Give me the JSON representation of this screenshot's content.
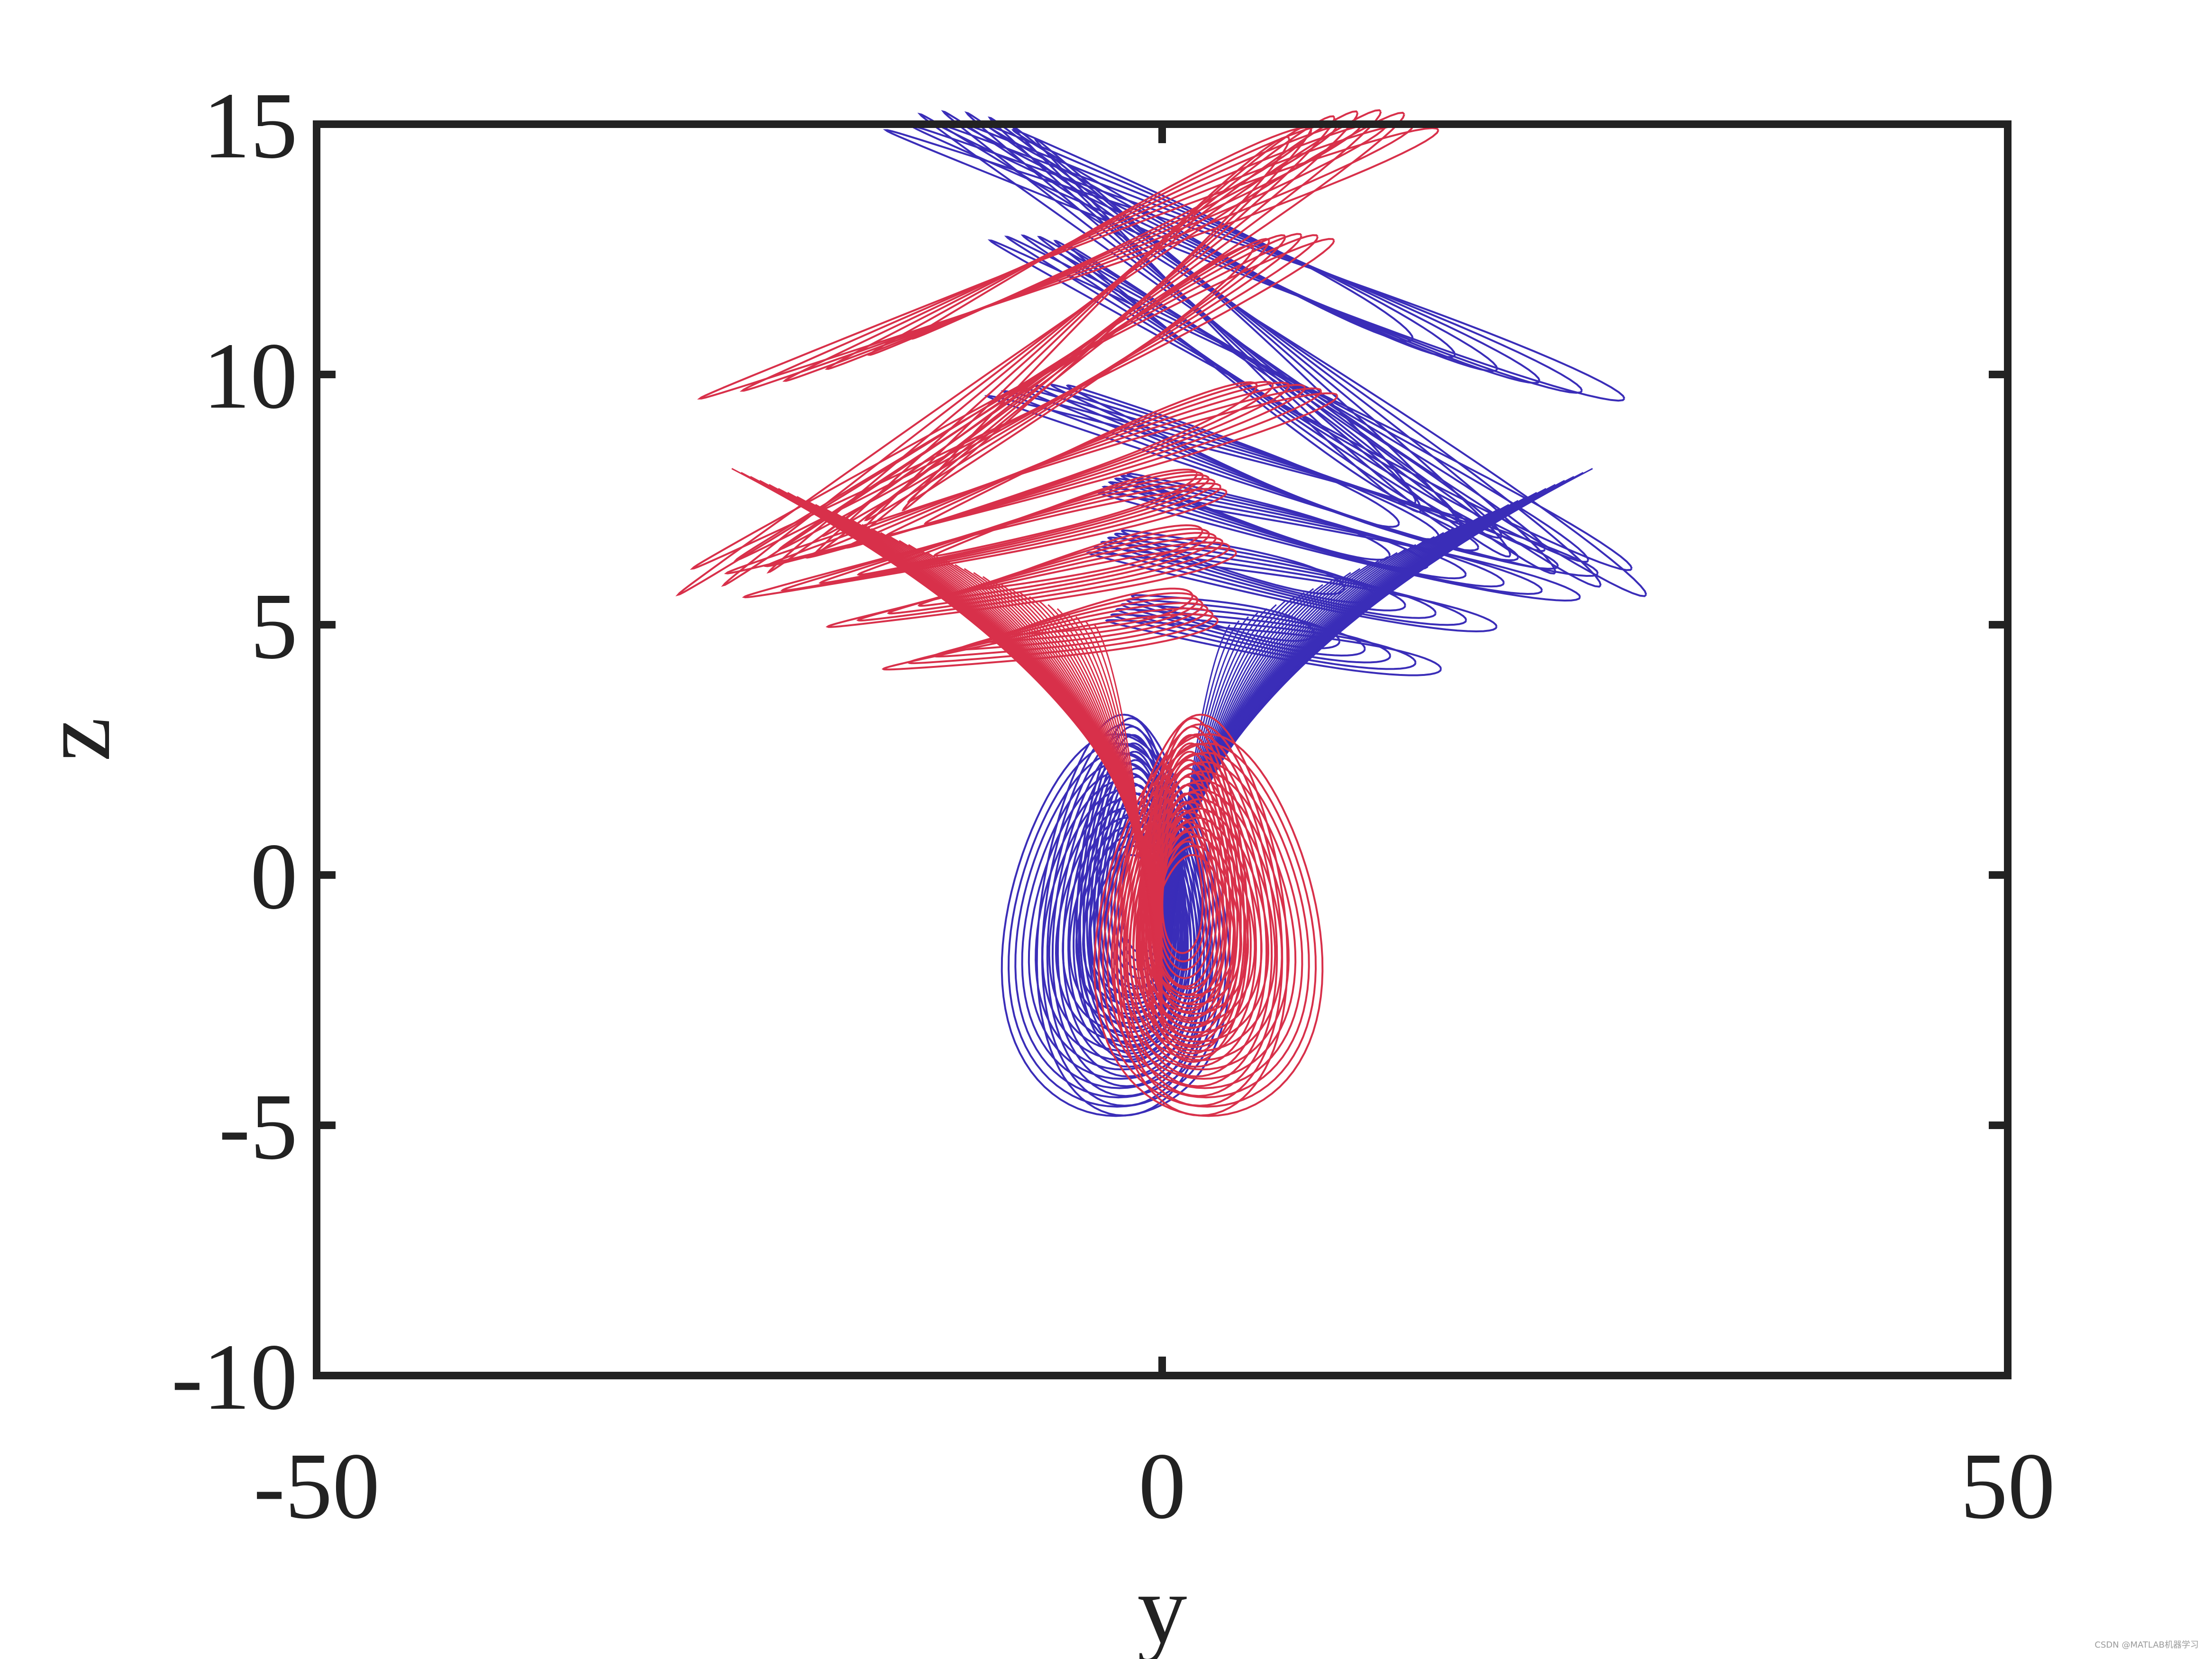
{
  "chart_data": {
    "type": "line",
    "title": "",
    "xlabel": "y",
    "ylabel": "z",
    "xlim": [
      -50,
      50
    ],
    "ylim": [
      -10,
      15
    ],
    "xticks": [
      -50,
      0,
      50
    ],
    "xtick_labels": [
      "-50",
      "0",
      "50"
    ],
    "yticks": [
      -10,
      -5,
      0,
      5,
      10,
      15
    ],
    "ytick_labels": [
      "-10",
      "-5",
      "0",
      "5",
      "10",
      "15"
    ],
    "grid": false,
    "legend": "none",
    "series": [
      {
        "color": "#3a2db8",
        "lobe_loops": [
          {
            "cx": -1.5,
            "cy": -0.8,
            "rx": 9.5,
            "ry": 4.2
          },
          {
            "cx": -1.8,
            "cy": -1.0,
            "rx": 12.5,
            "ry": 4.0
          },
          {
            "cx": -1.2,
            "cy": -0.3,
            "rx": 6.0,
            "ry": 3.6
          }
        ],
        "fan_loops": [
          {
            "cx": 6.5,
            "cy": 11.0,
            "len": 40,
            "angle": -18,
            "thick": 0.35
          },
          {
            "cx": 8.0,
            "cy": 10.0,
            "len": 35,
            "angle": -14,
            "thick": 0.3
          },
          {
            "cx": 5.0,
            "cy": 12.8,
            "len": 40,
            "angle": -10,
            "thick": 0.3
          },
          {
            "cx": 7.0,
            "cy": 8.4,
            "len": 33,
            "angle": -8,
            "thick": 0.28
          },
          {
            "cx": 9.5,
            "cy": 7.2,
            "len": 26,
            "angle": -6,
            "thick": 0.25
          },
          {
            "cx": 7.0,
            "cy": 6.3,
            "len": 22,
            "angle": -5,
            "thick": 0.25
          },
          {
            "cx": 6.0,
            "cy": 5.2,
            "len": 18,
            "angle": -4,
            "thick": 0.25
          }
        ]
      },
      {
        "color": "#d8304a",
        "lobe_loops": [
          {
            "cx": 1.5,
            "cy": -0.8,
            "rx": 9.5,
            "ry": 4.2
          },
          {
            "cx": 1.8,
            "cy": -1.0,
            "rx": 12.5,
            "ry": 4.0
          },
          {
            "cx": 1.2,
            "cy": -0.3,
            "rx": 6.0,
            "ry": 3.6
          }
        ],
        "fan_loops": [
          {
            "cx": -6.5,
            "cy": 11.0,
            "len": 40,
            "angle": 18,
            "thick": 0.35
          },
          {
            "cx": -8.0,
            "cy": 10.0,
            "len": 35,
            "angle": 14,
            "thick": 0.3
          },
          {
            "cx": -5.0,
            "cy": 12.8,
            "len": 40,
            "angle": 10,
            "thick": 0.3
          },
          {
            "cx": -7.0,
            "cy": 8.4,
            "len": 33,
            "angle": 8,
            "thick": 0.28
          },
          {
            "cx": -9.5,
            "cy": 7.2,
            "len": 26,
            "angle": 6,
            "thick": 0.25
          },
          {
            "cx": -7.0,
            "cy": 6.3,
            "len": 22,
            "angle": 5,
            "thick": 0.25
          },
          {
            "cx": -6.0,
            "cy": 5.2,
            "len": 18,
            "angle": 4,
            "thick": 0.25
          }
        ]
      }
    ]
  },
  "watermark": "CSDN @MATLAB机器学习"
}
